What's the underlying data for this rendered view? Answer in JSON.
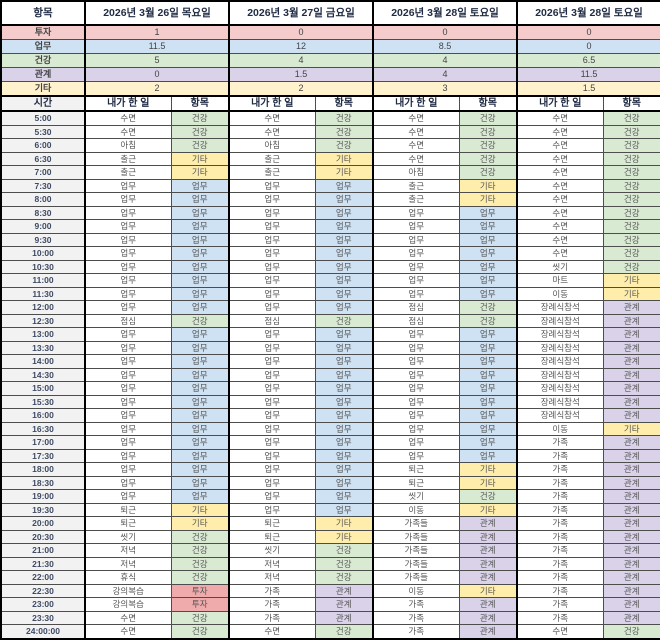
{
  "table": {
    "corner_label": "항목",
    "time_header": "시간",
    "col_activity_header": "내가 한 일",
    "col_category_header": "항목",
    "categories": [
      {
        "label": "투자",
        "header_color": "#f4cccc",
        "cell_color": "#efabab"
      },
      {
        "label": "업무",
        "header_color": "#cfe2f3",
        "cell_color": "#cfe2f3"
      },
      {
        "label": "건강",
        "header_color": "#d9ead3",
        "cell_color": "#d9ead3"
      },
      {
        "label": "관계",
        "header_color": "#d9d2e9",
        "cell_color": "#d9d2e9"
      },
      {
        "label": "기타",
        "header_color": "#fff2cc",
        "cell_color": "#ffeeab"
      }
    ],
    "days": [
      {
        "date": "2026년 3월 26일 목요일",
        "summary": {
          "투자": "1",
          "업무": "11.5",
          "건강": "5",
          "관계": "0",
          "기타": "2"
        }
      },
      {
        "date": "2026년 3월 27일 금요일",
        "summary": {
          "투자": "0",
          "업무": "12",
          "건강": "4",
          "관계": "1.5",
          "기타": "2"
        }
      },
      {
        "date": "2026년 3월 28일 토요일",
        "summary": {
          "투자": "0",
          "업무": "8.5",
          "건강": "4",
          "관계": "4",
          "기타": "3"
        }
      },
      {
        "date": "2026년 3월 28일 토요일",
        "summary": {
          "투자": "0",
          "업무": "0",
          "건강": "6.5",
          "관계": "11.5",
          "기타": "1.5"
        }
      }
    ],
    "rows": [
      {
        "time": "5:00",
        "cells": [
          [
            "수면",
            "건강"
          ],
          [
            "수면",
            "건강"
          ],
          [
            "수면",
            "건강"
          ],
          [
            "수면",
            "건강"
          ]
        ]
      },
      {
        "time": "5:30",
        "cells": [
          [
            "수면",
            "건강"
          ],
          [
            "수면",
            "건강"
          ],
          [
            "수면",
            "건강"
          ],
          [
            "수면",
            "건강"
          ]
        ]
      },
      {
        "time": "6:00",
        "cells": [
          [
            "아침",
            "건강"
          ],
          [
            "아침",
            "건강"
          ],
          [
            "수면",
            "건강"
          ],
          [
            "수면",
            "건강"
          ]
        ]
      },
      {
        "time": "6:30",
        "cells": [
          [
            "출근",
            "기타"
          ],
          [
            "출근",
            "기타"
          ],
          [
            "수면",
            "건강"
          ],
          [
            "수면",
            "건강"
          ]
        ]
      },
      {
        "time": "7:00",
        "cells": [
          [
            "출근",
            "기타"
          ],
          [
            "출근",
            "기타"
          ],
          [
            "아침",
            "건강"
          ],
          [
            "수면",
            "건강"
          ]
        ]
      },
      {
        "time": "7:30",
        "cells": [
          [
            "업무",
            "업무"
          ],
          [
            "업무",
            "업무"
          ],
          [
            "출근",
            "기타"
          ],
          [
            "수면",
            "건강"
          ]
        ]
      },
      {
        "time": "8:00",
        "cells": [
          [
            "업무",
            "업무"
          ],
          [
            "업무",
            "업무"
          ],
          [
            "출근",
            "기타"
          ],
          [
            "수면",
            "건강"
          ]
        ]
      },
      {
        "time": "8:30",
        "cells": [
          [
            "업무",
            "업무"
          ],
          [
            "업무",
            "업무"
          ],
          [
            "업무",
            "업무"
          ],
          [
            "수면",
            "건강"
          ]
        ]
      },
      {
        "time": "9:00",
        "cells": [
          [
            "업무",
            "업무"
          ],
          [
            "업무",
            "업무"
          ],
          [
            "업무",
            "업무"
          ],
          [
            "수면",
            "건강"
          ]
        ]
      },
      {
        "time": "9:30",
        "cells": [
          [
            "업무",
            "업무"
          ],
          [
            "업무",
            "업무"
          ],
          [
            "업무",
            "업무"
          ],
          [
            "수면",
            "건강"
          ]
        ]
      },
      {
        "time": "10:00",
        "cells": [
          [
            "업무",
            "업무"
          ],
          [
            "업무",
            "업무"
          ],
          [
            "업무",
            "업무"
          ],
          [
            "수면",
            "건강"
          ]
        ]
      },
      {
        "time": "10:30",
        "cells": [
          [
            "업무",
            "업무"
          ],
          [
            "업무",
            "업무"
          ],
          [
            "업무",
            "업무"
          ],
          [
            "씻기",
            "건강"
          ]
        ]
      },
      {
        "time": "11:00",
        "cells": [
          [
            "업무",
            "업무"
          ],
          [
            "업무",
            "업무"
          ],
          [
            "업무",
            "업무"
          ],
          [
            "마트",
            "기타"
          ]
        ]
      },
      {
        "time": "11:30",
        "cells": [
          [
            "업무",
            "업무"
          ],
          [
            "업무",
            "업무"
          ],
          [
            "업무",
            "업무"
          ],
          [
            "이동",
            "기타"
          ]
        ]
      },
      {
        "time": "12:00",
        "cells": [
          [
            "업무",
            "업무"
          ],
          [
            "업무",
            "업무"
          ],
          [
            "점심",
            "건강"
          ],
          [
            "장례식참석",
            "관계"
          ]
        ]
      },
      {
        "time": "12:30",
        "cells": [
          [
            "점심",
            "건강"
          ],
          [
            "점심",
            "건강"
          ],
          [
            "점심",
            "건강"
          ],
          [
            "장례식참석",
            "관계"
          ]
        ]
      },
      {
        "time": "13:00",
        "cells": [
          [
            "업무",
            "업무"
          ],
          [
            "업무",
            "업무"
          ],
          [
            "업무",
            "업무"
          ],
          [
            "장례식참석",
            "관계"
          ]
        ]
      },
      {
        "time": "13:30",
        "cells": [
          [
            "업무",
            "업무"
          ],
          [
            "업무",
            "업무"
          ],
          [
            "업무",
            "업무"
          ],
          [
            "장례식참석",
            "관계"
          ]
        ]
      },
      {
        "time": "14:00",
        "cells": [
          [
            "업무",
            "업무"
          ],
          [
            "업무",
            "업무"
          ],
          [
            "업무",
            "업무"
          ],
          [
            "장례식참석",
            "관계"
          ]
        ]
      },
      {
        "time": "14:30",
        "cells": [
          [
            "업무",
            "업무"
          ],
          [
            "업무",
            "업무"
          ],
          [
            "업무",
            "업무"
          ],
          [
            "장례식참석",
            "관계"
          ]
        ]
      },
      {
        "time": "15:00",
        "cells": [
          [
            "업무",
            "업무"
          ],
          [
            "업무",
            "업무"
          ],
          [
            "업무",
            "업무"
          ],
          [
            "장례식참석",
            "관계"
          ]
        ]
      },
      {
        "time": "15:30",
        "cells": [
          [
            "업무",
            "업무"
          ],
          [
            "업무",
            "업무"
          ],
          [
            "업무",
            "업무"
          ],
          [
            "장례식참석",
            "관계"
          ]
        ]
      },
      {
        "time": "16:00",
        "cells": [
          [
            "업무",
            "업무"
          ],
          [
            "업무",
            "업무"
          ],
          [
            "업무",
            "업무"
          ],
          [
            "장례식참석",
            "관계"
          ]
        ]
      },
      {
        "time": "16:30",
        "cells": [
          [
            "업무",
            "업무"
          ],
          [
            "업무",
            "업무"
          ],
          [
            "업무",
            "업무"
          ],
          [
            "이동",
            "기타"
          ]
        ]
      },
      {
        "time": "17:00",
        "cells": [
          [
            "업무",
            "업무"
          ],
          [
            "업무",
            "업무"
          ],
          [
            "업무",
            "업무"
          ],
          [
            "가족",
            "관계"
          ]
        ]
      },
      {
        "time": "17:30",
        "cells": [
          [
            "업무",
            "업무"
          ],
          [
            "업무",
            "업무"
          ],
          [
            "업무",
            "업무"
          ],
          [
            "가족",
            "관계"
          ]
        ]
      },
      {
        "time": "18:00",
        "cells": [
          [
            "업무",
            "업무"
          ],
          [
            "업무",
            "업무"
          ],
          [
            "퇴근",
            "기타"
          ],
          [
            "가족",
            "관계"
          ]
        ]
      },
      {
        "time": "18:30",
        "cells": [
          [
            "업무",
            "업무"
          ],
          [
            "업무",
            "업무"
          ],
          [
            "퇴근",
            "기타"
          ],
          [
            "가족",
            "관계"
          ]
        ]
      },
      {
        "time": "19:00",
        "cells": [
          [
            "업무",
            "업무"
          ],
          [
            "업무",
            "업무"
          ],
          [
            "씻기",
            "건강"
          ],
          [
            "가족",
            "관계"
          ]
        ]
      },
      {
        "time": "19:30",
        "cells": [
          [
            "퇴근",
            "기타"
          ],
          [
            "업무",
            "업무"
          ],
          [
            "이동",
            "기타"
          ],
          [
            "가족",
            "관계"
          ]
        ]
      },
      {
        "time": "20:00",
        "cells": [
          [
            "퇴근",
            "기타"
          ],
          [
            "퇴근",
            "기타"
          ],
          [
            "가족들",
            "관계"
          ],
          [
            "가족",
            "관계"
          ]
        ]
      },
      {
        "time": "20:30",
        "cells": [
          [
            "씻기",
            "건강"
          ],
          [
            "퇴근",
            "기타"
          ],
          [
            "가족들",
            "관계"
          ],
          [
            "가족",
            "관계"
          ]
        ]
      },
      {
        "time": "21:00",
        "cells": [
          [
            "저녁",
            "건강"
          ],
          [
            "씻기",
            "건강"
          ],
          [
            "가족들",
            "관계"
          ],
          [
            "가족",
            "관계"
          ]
        ]
      },
      {
        "time": "21:30",
        "cells": [
          [
            "저녁",
            "건강"
          ],
          [
            "저녁",
            "건강"
          ],
          [
            "가족들",
            "관계"
          ],
          [
            "가족",
            "관계"
          ]
        ]
      },
      {
        "time": "22:00",
        "cells": [
          [
            "휴식",
            "건강"
          ],
          [
            "저녁",
            "건강"
          ],
          [
            "가족들",
            "관계"
          ],
          [
            "가족",
            "관계"
          ]
        ]
      },
      {
        "time": "22:30",
        "cells": [
          [
            "강의복습",
            "투자"
          ],
          [
            "가족",
            "관계"
          ],
          [
            "이동",
            "기타"
          ],
          [
            "가족",
            "관계"
          ]
        ]
      },
      {
        "time": "23:00",
        "cells": [
          [
            "강의복습",
            "투자"
          ],
          [
            "가족",
            "관계"
          ],
          [
            "가족",
            "관계"
          ],
          [
            "가족",
            "관계"
          ]
        ]
      },
      {
        "time": "23:30",
        "cells": [
          [
            "수면",
            "건강"
          ],
          [
            "가족",
            "관계"
          ],
          [
            "가족",
            "관계"
          ],
          [
            "가족",
            "관계"
          ]
        ]
      },
      {
        "time": "24:00:00",
        "cells": [
          [
            "수면",
            "건강"
          ],
          [
            "수면",
            "건강"
          ],
          [
            "가족",
            "관계"
          ],
          [
            "수면",
            "건강"
          ]
        ]
      }
    ]
  }
}
